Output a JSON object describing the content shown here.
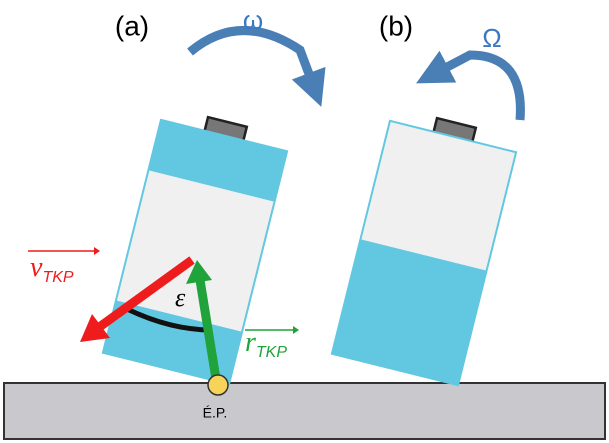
{
  "panels": {
    "a": {
      "label": "(a)",
      "rotation": "ω"
    },
    "b": {
      "label": "(b)",
      "rotation": "Ω"
    }
  },
  "vectors": {
    "velocity": {
      "symbol": "v",
      "subscript": "TKP"
    },
    "radius": {
      "symbol": "r",
      "subscript": "TKP"
    }
  },
  "angle": "ε",
  "contact_point": "É.P."
}
